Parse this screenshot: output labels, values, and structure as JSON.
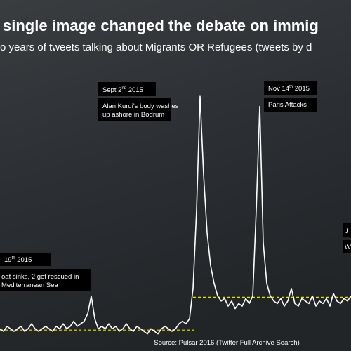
{
  "chart_data": {
    "type": "line",
    "title": "single image changed the debate on immig",
    "subtitle": "o years of tweets talking about Migrants OR Refugees (tweets by d",
    "source": "Source: Pulsar 2016 (Twitter Full Archive Search)",
    "ylim": [
      0,
      100
    ],
    "color": "#ffffff",
    "values": [
      6,
      5,
      7,
      6,
      5,
      6,
      7,
      5,
      6,
      8,
      6,
      5,
      6,
      7,
      6,
      5,
      7,
      6,
      8,
      6,
      7,
      9,
      7,
      8,
      9,
      12,
      19,
      10,
      6,
      7,
      6,
      8,
      6,
      7,
      5,
      6,
      8,
      6,
      5,
      7,
      6,
      5,
      4,
      6,
      5,
      4,
      6,
      7,
      6,
      5,
      6,
      8,
      9,
      8,
      10,
      22,
      53,
      98,
      67,
      44,
      31,
      24,
      19,
      17,
      18,
      15,
      17,
      14,
      16,
      15,
      18,
      16,
      19,
      53,
      94,
      40,
      24,
      19,
      17,
      16,
      18,
      15,
      17,
      22,
      16,
      15,
      18,
      17,
      16,
      19,
      15,
      17,
      16,
      18,
      15,
      20,
      17,
      16,
      18,
      17,
      19
    ],
    "reference_lines": [
      {
        "value": 5.5,
        "from": 0,
        "to": 56,
        "color": "#e6e000"
      },
      {
        "value": 18.5,
        "from": 55,
        "to": 100,
        "color": "#e6e000"
      }
    ],
    "annotations": [
      {
        "date": "Sept 2",
        "suffix": "nd",
        "year": " 2015",
        "lines": [
          "Alan Kurdi's body washes",
          "up ashore in Bodrum"
        ]
      },
      {
        "date": "Nov 14",
        "suffix": "th",
        "year": " 2015",
        "lines": [
          "Paris Attacks"
        ]
      },
      {
        "date": "19",
        "suffix": "th",
        "year": " 2015",
        "lines": [
          "oat sinks, 2 get rescued in",
          "Mediterranean Sea"
        ]
      },
      {
        "date": "J",
        "lines": [
          "W"
        ]
      }
    ]
  }
}
